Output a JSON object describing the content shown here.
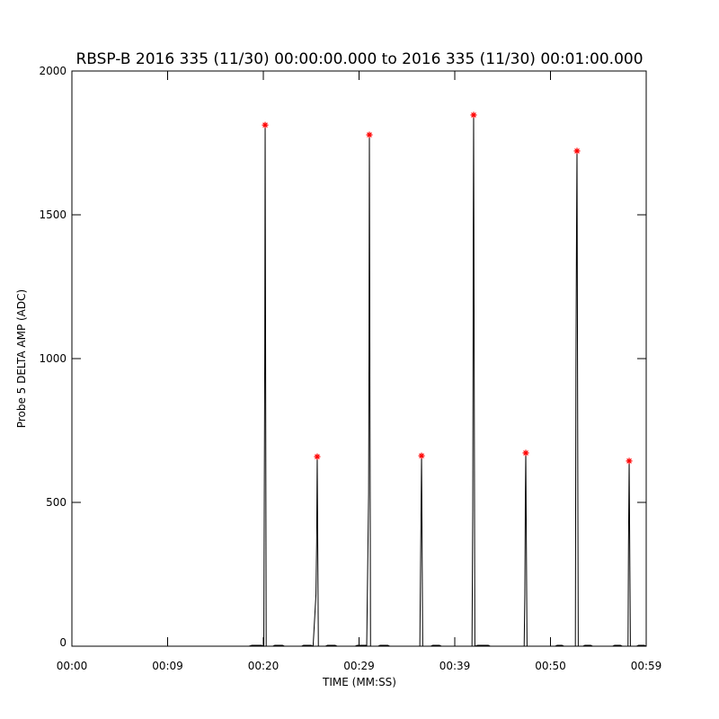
{
  "chart_data": {
    "type": "line",
    "title": "RBSP-B 2016 335 (11/30) 00:00:00.000 to 2016 335 (11/30) 00:01:00.000",
    "xlabel": "TIME (MM:SS)",
    "ylabel": "Probe 5 DELTA AMP (ADC)",
    "xlim": [
      0,
      60
    ],
    "ylim": [
      0,
      2000
    ],
    "xticks": [
      {
        "value": 0,
        "label": "00:00"
      },
      {
        "value": 10,
        "label": "00:09"
      },
      {
        "value": 20,
        "label": "00:20"
      },
      {
        "value": 30,
        "label": "00:29"
      },
      {
        "value": 40,
        "label": "00:39"
      },
      {
        "value": 50,
        "label": "00:50"
      },
      {
        "value": 60,
        "label": "00:59"
      }
    ],
    "yticks": [
      0,
      500,
      1000,
      1500,
      2000
    ],
    "series": [
      {
        "color": "#000000",
        "marker": "none",
        "x": [
          0,
          18.5,
          18.8,
          19.8,
          20.05,
          20.1,
          20.15,
          20.19,
          20.3,
          21.0,
          21.2,
          22.0,
          22.2,
          24.0,
          24.2,
          25.0,
          25.2,
          25.5,
          25.57,
          25.63,
          25.75,
          26.5,
          26.7,
          27.5,
          27.7,
          29.6,
          29.8,
          30.8,
          31.0,
          31.04,
          31.08,
          31.2,
          32.0,
          32.2,
          33.0,
          33.2,
          36.35,
          36.45,
          36.53,
          36.65,
          37.5,
          37.7,
          38.4,
          38.6,
          41.8,
          41.88,
          41.93,
          41.97,
          42.1,
          42.4,
          43.5,
          43.7,
          47.25,
          47.32,
          47.37,
          47.42,
          47.55,
          50.5,
          50.7,
          51.2,
          51.4,
          52.6,
          52.66,
          52.72,
          52.77,
          52.9,
          53.4,
          53.6,
          54.2,
          54.4,
          56.5,
          56.7,
          57.3,
          57.5,
          58.1,
          58.15,
          58.19,
          58.22,
          58.35,
          59.0,
          59.2,
          59.8,
          60
        ],
        "values": [
          0,
          0,
          3,
          3,
          0,
          520,
          1030,
          1812,
          0,
          0,
          3,
          3,
          0,
          0,
          3,
          3,
          0,
          180,
          360,
          659,
          0,
          0,
          3,
          3,
          0,
          0,
          3,
          3,
          530,
          1020,
          1778,
          0,
          0,
          3,
          3,
          0,
          0,
          370,
          662,
          0,
          0,
          3,
          3,
          0,
          0,
          470,
          1390,
          1847,
          0,
          3,
          3,
          0,
          0,
          180,
          500,
          672,
          0,
          0,
          3,
          3,
          0,
          0,
          970,
          1440,
          1722,
          0,
          0,
          3,
          3,
          0,
          0,
          3,
          3,
          0,
          0,
          350,
          520,
          644,
          0,
          0,
          3,
          3,
          0
        ]
      },
      {
        "color": "#ff0000",
        "marker": "asterisk",
        "x": [
          20.19,
          25.63,
          31.08,
          36.53,
          41.97,
          47.42,
          52.77,
          58.22
        ],
        "values": [
          1812,
          659,
          1778,
          662,
          1847,
          672,
          1722,
          644
        ]
      }
    ]
  }
}
